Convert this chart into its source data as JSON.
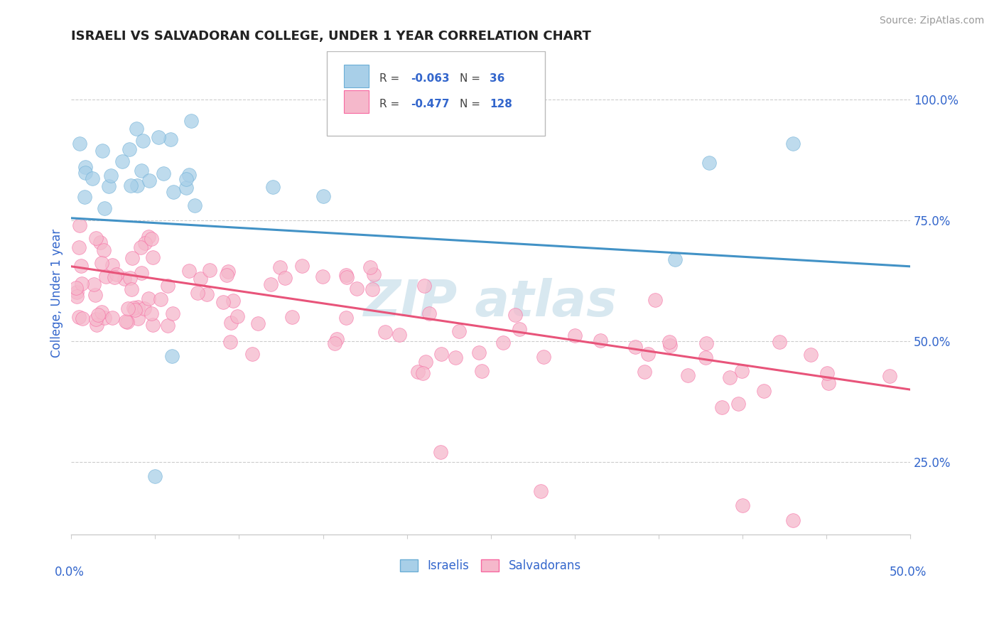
{
  "title": "ISRAELI VS SALVADORAN COLLEGE, UNDER 1 YEAR CORRELATION CHART",
  "source_text": "Source: ZipAtlas.com",
  "ylabel": "College, Under 1 year",
  "ytick_values": [
    0.25,
    0.5,
    0.75,
    1.0
  ],
  "ytick_labels": [
    "25.0%",
    "50.0%",
    "75.0%",
    "100.0%"
  ],
  "xlim": [
    0.0,
    0.5
  ],
  "ylim": [
    0.1,
    1.1
  ],
  "legend_R_blue": "-0.063",
  "legend_N_blue": "36",
  "legend_R_pink": "-0.477",
  "legend_N_pink": "128",
  "color_blue": "#a8cfe8",
  "color_pink": "#f5b8cb",
  "color_blue_edge": "#6baed6",
  "color_pink_edge": "#f768a1",
  "color_blue_line": "#4292c6",
  "color_pink_line": "#e8547a",
  "color_text": "#3366cc",
  "color_grid": "#cccccc",
  "blue_line_y0": 0.755,
  "blue_line_y1": 0.655,
  "pink_line_y0": 0.655,
  "pink_line_y1": 0.4,
  "watermark_color": "#d8e8f0"
}
